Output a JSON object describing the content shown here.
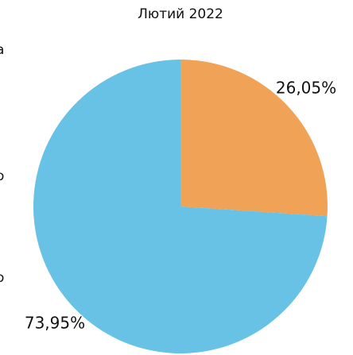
{
  "chart_data": {
    "type": "pie",
    "title": "Лютий 2022",
    "values": [
      26.05,
      73.95
    ],
    "value_labels": [
      "26,05%",
      "73,95%"
    ],
    "colors": [
      "#f0a356",
      "#67c2e6"
    ],
    "annotations": [
      "а",
      "о",
      "о"
    ]
  }
}
